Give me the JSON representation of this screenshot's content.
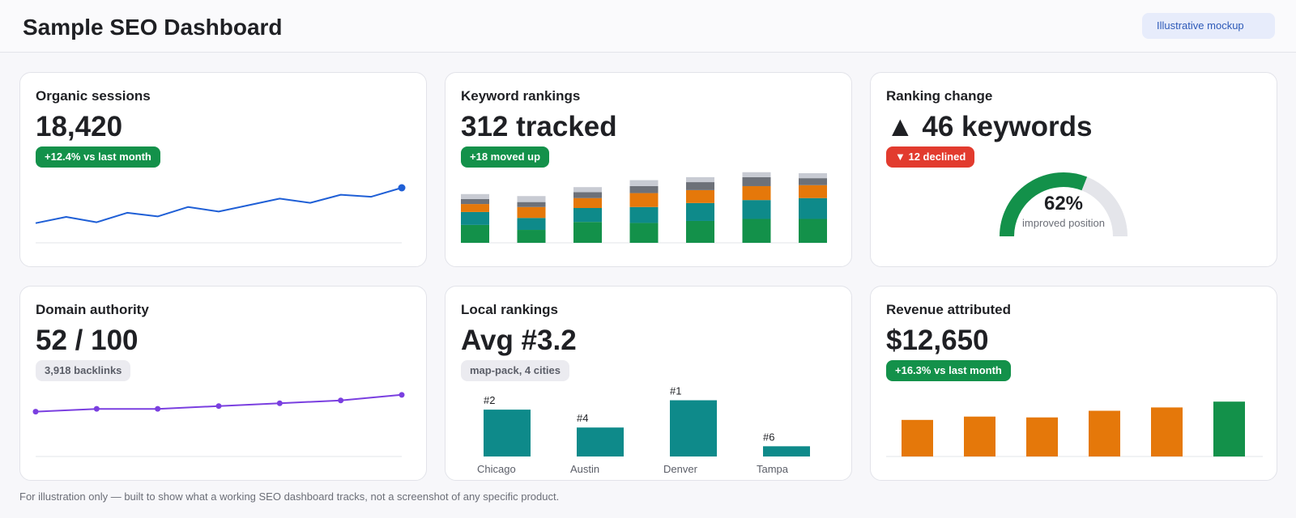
{
  "header": {
    "title": "Sample SEO Dashboard",
    "badge": "Illustrative mockup"
  },
  "colors": {
    "green": "#13914a",
    "red": "#e23b2e",
    "blue": "#1f5fd6",
    "purple": "#7a3fe0",
    "teal": "#0e8a8a",
    "orange": "#e5780a",
    "slate": "#6d7179",
    "light_gray": "#c8cbd3",
    "track": "#e4e5ea"
  },
  "cards": {
    "organic": {
      "title": "Organic sessions",
      "value": "18,420",
      "badge": "+12.4% vs last month",
      "chart_data": {
        "type": "line",
        "series": [
          {
            "values": [
              5,
              32,
              9,
              50,
              34,
              75,
              55,
              83,
              111,
              93,
              128,
              119,
              158
            ]
          }
        ],
        "ylim": [
          -80,
          200
        ]
      }
    },
    "keywords": {
      "title": "Keyword rankings",
      "value": "312 tracked",
      "badge": "+18 moved up",
      "chart_data": {
        "type": "bar",
        "stacked": true,
        "series": [
          {
            "color_key": "green",
            "values": [
              18,
              13,
              21,
              20,
              22,
              24,
              24
            ]
          },
          {
            "color_key": "teal",
            "values": [
              13,
              12,
              14,
              16,
              18,
              19,
              21
            ]
          },
          {
            "color_key": "orange",
            "values": [
              8,
              11,
              10,
              14,
              13,
              14,
              13
            ]
          },
          {
            "color_key": "slate",
            "values": [
              5,
              5,
              6,
              7,
              8,
              9,
              7
            ]
          },
          {
            "color_key": "light_gray",
            "values": [
              5,
              6,
              5,
              6,
              5,
              5,
              5
            ]
          }
        ],
        "ylim": [
          0,
          70
        ]
      }
    },
    "ranking_change": {
      "title": "Ranking change",
      "value": "▲ 46 keywords",
      "badge": "▼ 12 declined",
      "gauge_label": "improved position",
      "chart_data": {
        "type": "pie",
        "value": 62,
        "label": "62%"
      }
    },
    "domain": {
      "title": "Domain authority",
      "value": "52 / 100",
      "badge": "3,918 backlinks",
      "chart_data": {
        "type": "line",
        "series": [
          {
            "values": [
              46,
              47,
              47,
              48,
              49,
              50,
              52
            ]
          }
        ],
        "ylim": [
          30,
          56
        ]
      }
    },
    "local": {
      "title": "Local rankings",
      "value": "Avg #3.2",
      "badge": "map-pack, 4 cities",
      "chart_data": {
        "type": "bar",
        "categories": [
          "Chicago",
          "Austin",
          "Denver",
          "Tampa"
        ],
        "values": [
          55,
          34,
          66,
          12
        ],
        "data_labels": [
          "#2",
          "#4",
          "#1",
          "#6"
        ],
        "ylim": [
          0,
          76
        ]
      }
    },
    "revenue": {
      "title": "Revenue attributed",
      "value": "$12,650",
      "badge": "+16.3% vs last month",
      "chart_data": {
        "type": "bar",
        "values": [
          44,
          48,
          47,
          55,
          59,
          66
        ],
        "highlight_last": true,
        "ylim": [
          0,
          74
        ]
      }
    }
  },
  "footer": "For illustration only — built to show what a working SEO dashboard tracks, not a screenshot of any specific product."
}
